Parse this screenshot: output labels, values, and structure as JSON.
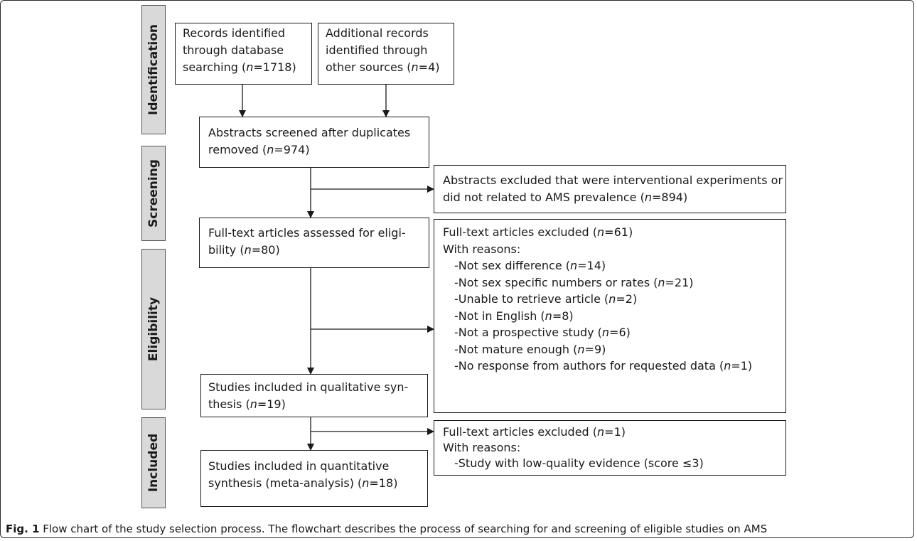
{
  "stages": {
    "identification": "Identification",
    "screening": "Screening",
    "eligibility": "Eligibility",
    "included": "Included"
  },
  "boxes": {
    "db_records": {
      "lines": [
        "Records identified",
        "through database",
        "searching ("
      ],
      "n": "n",
      "tail": "=1718)"
    },
    "other_records": {
      "lines": [
        "Additional records",
        "identified through",
        "other sources ("
      ],
      "n": "n",
      "tail": "=4)"
    },
    "screened": {
      "lines": [
        "Abstracts screened after duplicates",
        "removed ("
      ],
      "n": "n",
      "tail": "=974)"
    },
    "abstracts_excluded": {
      "lines": [
        "Abstracts excluded that were interventional experiments or",
        "did not related to AMS prevalence ("
      ],
      "n": "n",
      "tail": "=894)"
    },
    "fulltext_assessed": {
      "lines": [
        "Full-text articles assessed for eligi-",
        "bility ("
      ],
      "n": "n",
      "tail": "=80)"
    },
    "fulltext_excluded": {
      "header": "Full-text articles excluded (",
      "header_tail": "=61)",
      "reasons_label": "With reasons:",
      "reasons": [
        {
          "text": "-Not sex difference (",
          "tail": "=14)"
        },
        {
          "text": "-Not sex specific numbers or rates (",
          "tail": "=21)"
        },
        {
          "text": "-Unable to retrieve article (",
          "tail": "=2)"
        },
        {
          "text": "-Not in English (",
          "tail": "=8)"
        },
        {
          "text": "-Not a prospective study (",
          "tail": "=6)"
        },
        {
          "text": "-Not mature enough (",
          "tail": "=9)"
        },
        {
          "text": "-No response from authors for requested data (",
          "tail": "=1)"
        }
      ]
    },
    "qualitative": {
      "lines": [
        "Studies included in qualitative syn-",
        "thesis ("
      ],
      "n": "n",
      "tail": "=19)"
    },
    "excluded_low_quality": {
      "header": "Full-text articles excluded (",
      "header_tail": "=1)",
      "reasons_label": "With reasons:",
      "reasons": [
        {
          "text": "-Study with low-quality evidence (score ≤3)",
          "tail": ""
        }
      ]
    },
    "quantitative": {
      "lines": [
        "Studies included in quantitative",
        "synthesis (meta-analysis) ("
      ],
      "n": "n",
      "tail": "=18)"
    }
  },
  "caption": {
    "label": "Fig. 1",
    "text": " Flow chart of the study selection process. The flowchart describes the process of searching for and screening of eligible studies on AMS"
  }
}
